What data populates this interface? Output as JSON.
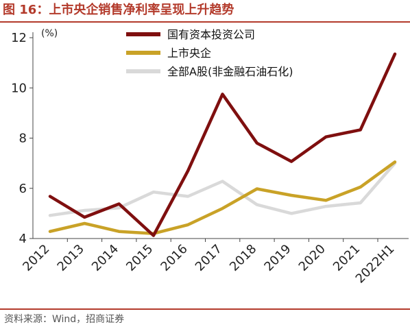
{
  "figure": {
    "title": "图 16：上市央企销售净利率呈现上升趋势",
    "source": "资料来源：Wind，招商证券"
  },
  "chart_data": {
    "type": "line",
    "ylabel": "(%)",
    "xlabel": "",
    "categories": [
      "2012",
      "2013",
      "2014",
      "2015",
      "2016",
      "2017",
      "2018",
      "2019",
      "2020",
      "2021",
      "2022H1"
    ],
    "ylim": [
      4,
      12
    ],
    "yticks": [
      4,
      6,
      8,
      10,
      12
    ],
    "grid": false,
    "legend_position": "top",
    "series": [
      {
        "name": "国有资本投资公司",
        "color": "#7f0f0f",
        "values": [
          5.68,
          4.85,
          5.38,
          4.12,
          6.7,
          9.75,
          7.8,
          7.07,
          8.05,
          8.33,
          11.35
        ]
      },
      {
        "name": "上市央企",
        "color": "#c9a227",
        "values": [
          4.28,
          4.6,
          4.28,
          4.2,
          4.55,
          5.2,
          5.98,
          5.72,
          5.52,
          6.05,
          7.05
        ]
      },
      {
        "name": "全部A股(非金融石油石化)",
        "color": "#d9d9d9",
        "values": [
          4.92,
          5.12,
          5.22,
          5.85,
          5.68,
          6.28,
          5.35,
          5.0,
          5.28,
          5.42,
          7.0
        ]
      }
    ]
  }
}
